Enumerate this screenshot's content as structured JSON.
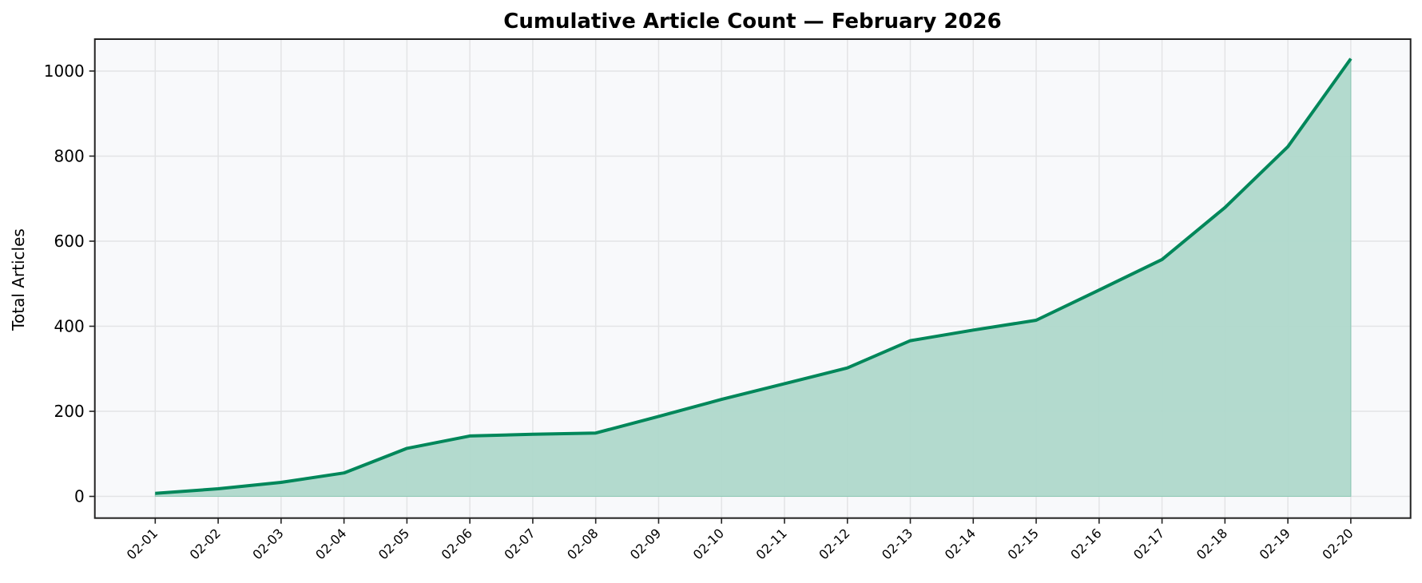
{
  "chart_data": {
    "type": "area",
    "title": "Cumulative Article Count — February 2026",
    "xlabel": "",
    "ylabel": "Total Articles",
    "categories": [
      "02-01",
      "02-02",
      "02-03",
      "02-04",
      "02-05",
      "02-06",
      "02-07",
      "02-08",
      "02-09",
      "02-10",
      "02-11",
      "02-12",
      "02-13",
      "02-14",
      "02-15",
      "02-16",
      "02-17",
      "02-18",
      "02-19",
      "02-20"
    ],
    "series": [
      {
        "name": "Total Articles",
        "values": [
          7,
          18,
          33,
          55,
          113,
          142,
          146,
          149,
          188,
          228,
          265,
          302,
          366,
          391,
          414,
          485,
          557,
          679,
          822,
          1029
        ]
      }
    ],
    "yticks": [
      0,
      200,
      400,
      600,
      800,
      1000
    ],
    "ylim": [
      -51,
      1075
    ],
    "xlim": [
      -0.96,
      19.95
    ],
    "grid": true,
    "legend": "none",
    "colors": {
      "line": "#00875A",
      "fill": "#AFD8CB",
      "plot_background": "#F8F9FB",
      "grid": "#E3E4E6",
      "axis": "#222222"
    }
  }
}
